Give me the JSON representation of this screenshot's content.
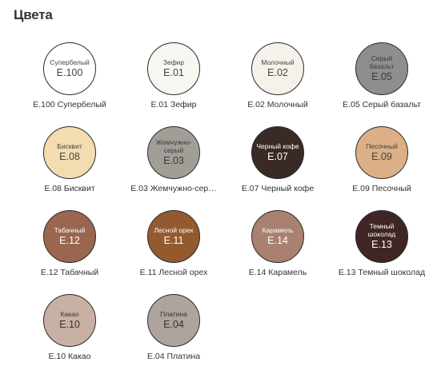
{
  "title": "Цвета",
  "swatches": [
    {
      "name": "Супербелый",
      "code": "E.100",
      "caption": "E.100 Супербелый",
      "color": "#ffffff",
      "text": "#444444"
    },
    {
      "name": "Зефир",
      "code": "E.01",
      "caption": "E.01 Зефир",
      "color": "#f8f6f0",
      "text": "#444444"
    },
    {
      "name": "Молочный",
      "code": "E.02",
      "caption": "E.02 Молочный",
      "color": "#f6f1ea",
      "text": "#444444"
    },
    {
      "name": "Серый базальт",
      "code": "E.05",
      "caption": "E.05 Серый базальт",
      "color": "#8e8e8e",
      "text": "#3a3a3a"
    },
    {
      "name": "Бисквит",
      "code": "E.08",
      "caption": "E.08 Бисквит",
      "color": "#f3dcb0",
      "text": "#444444"
    },
    {
      "name": "Жемчужно-серый",
      "code": "E.03",
      "caption": "E.03 Жемчужно-сер…",
      "color": "#a19e97",
      "text": "#3a3a3a"
    },
    {
      "name": "Черный кофе",
      "code": "E.07",
      "caption": "E.07 Черный кофе",
      "color": "#3a2a26",
      "text": "#ffffff"
    },
    {
      "name": "Песочный",
      "code": "E.09",
      "caption": "E.09 Песочный",
      "color": "#dcaf86",
      "text": "#444444"
    },
    {
      "name": "Табачный",
      "code": "E.12",
      "caption": "E.12 Табачный",
      "color": "#9a6650",
      "text": "#ffffff"
    },
    {
      "name": "Лесной орех",
      "code": "E.11",
      "caption": "E.11 Лесной орех",
      "color": "#945a2f",
      "text": "#ffffff"
    },
    {
      "name": "Карамель",
      "code": "E.14",
      "caption": "E.14 Карамель",
      "color": "#aa8070",
      "text": "#ffffff"
    },
    {
      "name": "Темный шоколад",
      "code": "E.13",
      "caption": "E.13 Темный шоколад",
      "color": "#3f2624",
      "text": "#ffffff"
    },
    {
      "name": "Какао",
      "code": "E.10",
      "caption": "E.10 Какао",
      "color": "#c9b0a5",
      "text": "#333333"
    },
    {
      "name": "Платина",
      "code": "E.04",
      "caption": "E.04 Платина",
      "color": "#aea39d",
      "text": "#333333"
    }
  ]
}
